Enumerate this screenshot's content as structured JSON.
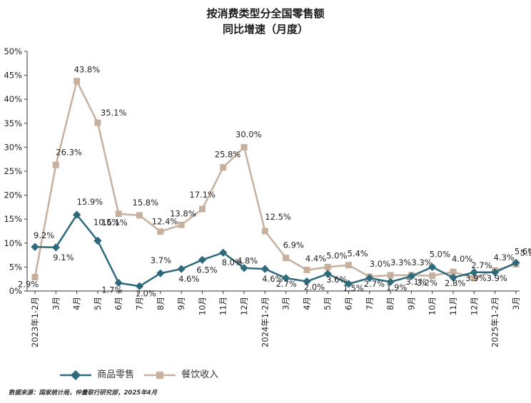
{
  "chart_data": {
    "type": "line",
    "title": "按消费类型分全国零售额",
    "subtitle": "同比增速（月度）",
    "categories": [
      "2023年1-2月",
      "3月",
      "4月",
      "5月",
      "6月",
      "7月",
      "8月",
      "9月",
      "10月",
      "11月",
      "12月",
      "2024年1-2月",
      "3月",
      "4月",
      "5月",
      "6月",
      "7月",
      "8月",
      "9月",
      "10月",
      "11月",
      "12月",
      "2025年1-2月",
      "3月"
    ],
    "y_ticks": [
      "0%",
      "5%",
      "10%",
      "15%",
      "20%",
      "25%",
      "30%",
      "35%",
      "40%",
      "45%",
      "50%"
    ],
    "ylim": [
      0,
      50
    ],
    "legend_position": "bottom-left",
    "grid": false,
    "series": [
      {
        "name": "商品零售",
        "color": "#2e6a7c",
        "marker": "diamond",
        "values": [
          9.2,
          9.1,
          15.9,
          10.5,
          1.7,
          1.0,
          3.7,
          4.6,
          6.5,
          8.0,
          4.8,
          4.6,
          2.7,
          2.0,
          3.6,
          1.5,
          2.7,
          1.9,
          3.1,
          5.0,
          2.8,
          3.9,
          3.9,
          5.9
        ],
        "labels": [
          "9.2%",
          "9.1%",
          "15.9%",
          "10.5%",
          "1.7%",
          "1.0%",
          "3.7%",
          "4.6%",
          "6.5%",
          "8.0%",
          "4.8%",
          "4.6%",
          "2.7%",
          "2.0%",
          "3.6%",
          "1.5%",
          "2.7%",
          "1.9%",
          "3.1%",
          "5.0%",
          "2.8%",
          "3.9%",
          "3.9%",
          "5.9%"
        ]
      },
      {
        "name": "餐饮收入",
        "color": "#c8b09e",
        "marker": "square",
        "values": [
          2.9,
          26.3,
          43.8,
          35.1,
          16.1,
          15.8,
          12.4,
          13.8,
          17.1,
          25.8,
          30.0,
          12.5,
          6.9,
          4.4,
          5.0,
          5.4,
          3.0,
          3.3,
          3.3,
          3.2,
          4.0,
          2.7,
          4.3,
          5.6
        ],
        "labels": [
          "2.9%",
          "26.3%",
          "43.8%",
          "35.1%",
          "16.1%",
          "15.8%",
          "12.4%",
          "13.8%",
          "17.1%",
          "25.8%",
          "30.0%",
          "12.5%",
          "6.9%",
          "4.4%",
          "5.0%",
          "5.4%",
          "3.0%",
          "3.3%",
          "3.3%",
          "3.2%",
          "4.0%",
          "2.7%",
          "4.3%",
          "5.6%"
        ]
      }
    ]
  },
  "source": "数据来源：国家统计局，仲量联行研究部，2025年4月"
}
